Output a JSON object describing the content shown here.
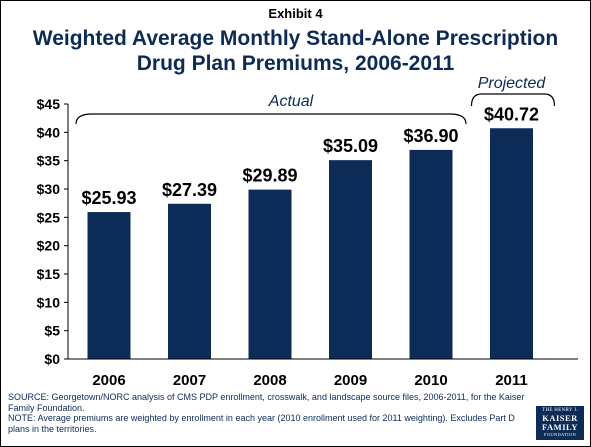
{
  "header": {
    "exhibit": "Exhibit 4",
    "title_line1": "Weighted Average Monthly Stand-Alone Prescription",
    "title_line2": "Drug Plan Premiums, 2006-2011"
  },
  "chart_data": {
    "type": "bar",
    "categories": [
      "2006",
      "2007",
      "2008",
      "2009",
      "2010",
      "2011"
    ],
    "values": [
      25.93,
      27.39,
      29.89,
      35.09,
      36.9,
      40.72
    ],
    "data_labels": [
      "$25.93",
      "$27.39",
      "$29.89",
      "$35.09",
      "$36.90",
      "$40.72"
    ],
    "ylim": [
      0,
      45
    ],
    "y_ticks": [
      0,
      5,
      10,
      15,
      20,
      25,
      30,
      35,
      40,
      45
    ],
    "y_tick_labels": [
      "$0",
      "$5",
      "$10",
      "$15",
      "$20",
      "$25",
      "$30",
      "$35",
      "$40",
      "$45"
    ],
    "xlabel": "",
    "ylabel": "",
    "grid": false,
    "annotations": {
      "actual": "Actual",
      "projected": "Projected"
    },
    "bar_color": "#0c2b57"
  },
  "notes": {
    "source": "SOURCE: Georgetown/NORC analysis of CMS PDP enrollment, crosswalk, and landscape source files, 2006-2011, for the Kaiser Family Foundation.",
    "note": "NOTE: Average premiums are weighted by enrollment in each year (2010 enrollment used for 2011 weighting). Excludes Part D plans in the territories."
  },
  "logo": {
    "line1": "THE HENRY J.",
    "line2a": "KAISER",
    "line2b": "FAMILY",
    "line3": "FOUNDATION"
  }
}
